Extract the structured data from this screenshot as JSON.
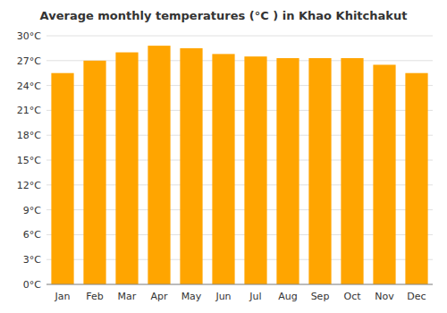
{
  "chart_data": {
    "type": "bar",
    "title": "Average monthly temperatures (°C ) in Khao Khitchakut",
    "categories": [
      "Jan",
      "Feb",
      "Mar",
      "Apr",
      "May",
      "Jun",
      "Jul",
      "Aug",
      "Sep",
      "Oct",
      "Nov",
      "Dec"
    ],
    "values": [
      25.5,
      27.0,
      28.0,
      28.8,
      28.5,
      27.8,
      27.5,
      27.3,
      27.3,
      27.3,
      26.5,
      25.5
    ],
    "color": "#FFA500",
    "ylim": [
      0,
      30
    ],
    "yticks": [
      {
        "value": 0,
        "label": "0°C"
      },
      {
        "value": 3,
        "label": "3°C"
      },
      {
        "value": 6,
        "label": "6°C"
      },
      {
        "value": 9,
        "label": "9°C"
      },
      {
        "value": 12,
        "label": "12°C"
      },
      {
        "value": 15,
        "label": "15°C"
      },
      {
        "value": 18,
        "label": "18°C"
      },
      {
        "value": 21,
        "label": "21°C"
      },
      {
        "value": 24,
        "label": "24°C"
      },
      {
        "value": 27,
        "label": "27°C"
      },
      {
        "value": 30,
        "label": "30°C"
      }
    ],
    "grid": true
  }
}
